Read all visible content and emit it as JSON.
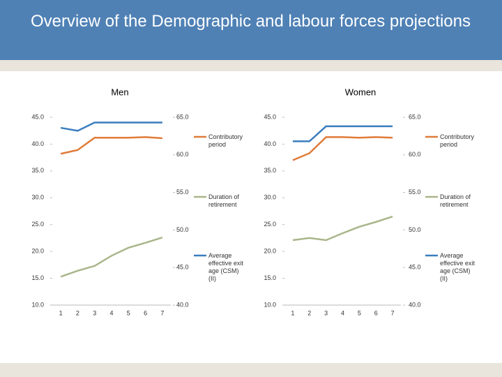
{
  "slide_title": "Overview of the Demographic and labour forces projections",
  "chart_data": [
    {
      "type": "line",
      "title": "Men",
      "categories": [
        "1",
        "2",
        "3",
        "4",
        "5",
        "6",
        "7"
      ],
      "ylim": [
        10,
        45
      ],
      "yticks": [
        {
          "value": 10,
          "label": "10.0"
        },
        {
          "value": 15,
          "label": "15.0"
        },
        {
          "value": 20,
          "label": "20.0"
        },
        {
          "value": 25,
          "label": "25.0"
        },
        {
          "value": 30,
          "label": "30.0"
        },
        {
          "value": 35,
          "label": "35.0"
        },
        {
          "value": 40,
          "label": "40.0"
        },
        {
          "value": 45,
          "label": "45.0"
        }
      ],
      "y2lim": [
        40,
        65
      ],
      "y2ticks": [
        {
          "value": 40,
          "label": "40.0"
        },
        {
          "value": 45,
          "label": "45.0"
        },
        {
          "value": 50,
          "label": "50.0"
        },
        {
          "value": 55,
          "label": "55.0"
        },
        {
          "value": 60,
          "label": "60.0"
        },
        {
          "value": 65,
          "label": "65.0"
        }
      ],
      "series": [
        {
          "name": "Contributory period",
          "color": "#e07b39",
          "values": [
            38.2,
            38.9,
            41.2,
            41.2,
            41.2,
            41.3,
            41.1
          ]
        },
        {
          "name": "Duration of retirement",
          "color": "#a9b58a",
          "values": [
            15.3,
            16.4,
            17.3,
            19.2,
            20.7,
            21.6,
            22.6
          ]
        },
        {
          "name": "Average effective exit age (CSM) (II)",
          "color": "#3a7dbf",
          "axis": "y2",
          "values": [
            63.6,
            63.2,
            64.3,
            64.3,
            64.3,
            64.3,
            64.3
          ]
        }
      ]
    },
    {
      "type": "line",
      "title": "Women",
      "categories": [
        "1",
        "2",
        "3",
        "4",
        "5",
        "6",
        "7"
      ],
      "ylim": [
        10,
        45
      ],
      "yticks": [
        {
          "value": 10,
          "label": "10.0"
        },
        {
          "value": 15,
          "label": "15.0"
        },
        {
          "value": 20,
          "label": "20.0"
        },
        {
          "value": 25,
          "label": "25.0"
        },
        {
          "value": 30,
          "label": "30.0"
        },
        {
          "value": 35,
          "label": "35.0"
        },
        {
          "value": 40,
          "label": "40.0"
        },
        {
          "value": 45,
          "label": "45.0"
        }
      ],
      "y2lim": [
        40,
        65
      ],
      "y2ticks": [
        {
          "value": 40,
          "label": "40.0"
        },
        {
          "value": 45,
          "label": "45.0"
        },
        {
          "value": 50,
          "label": "50.0"
        },
        {
          "value": 55,
          "label": "55.0"
        },
        {
          "value": 60,
          "label": "60.0"
        },
        {
          "value": 65,
          "label": "65.0"
        }
      ],
      "series": [
        {
          "name": "Contributory period",
          "color": "#e07b39",
          "values": [
            37.0,
            38.3,
            41.3,
            41.3,
            41.2,
            41.3,
            41.2
          ]
        },
        {
          "name": "Duration of retirement",
          "color": "#a9b58a",
          "values": [
            22.1,
            22.5,
            22.1,
            23.4,
            24.6,
            25.5,
            26.5
          ]
        },
        {
          "name": "Average effective exit age (CSM) (II)",
          "color": "#3a7dbf",
          "axis": "y2",
          "values": [
            61.8,
            61.8,
            63.8,
            63.8,
            63.8,
            63.8,
            63.8
          ]
        }
      ]
    }
  ]
}
